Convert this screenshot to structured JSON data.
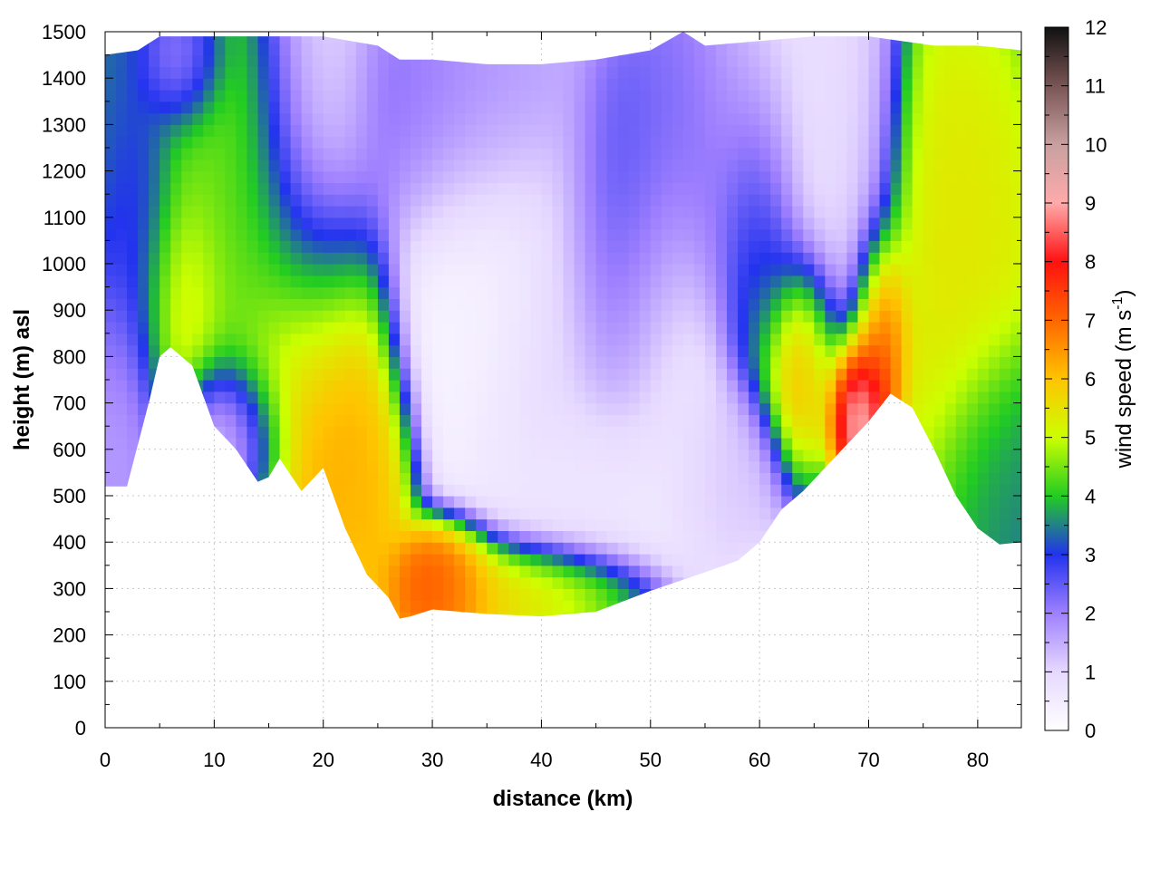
{
  "chart_data": {
    "type": "heatmap",
    "title": "",
    "xlabel": "distance (km)",
    "ylabel": "height (m) asl",
    "xlim": [
      0,
      84
    ],
    "ylim": [
      0,
      1500
    ],
    "x_ticks": [
      0,
      10,
      20,
      30,
      40,
      50,
      60,
      70,
      80
    ],
    "y_ticks": [
      0,
      100,
      200,
      300,
      400,
      500,
      600,
      700,
      800,
      900,
      1000,
      1100,
      1200,
      1300,
      1400,
      1500
    ],
    "grid": true,
    "colorbar": {
      "label_main": "wind speed (m s",
      "label_sup": "-1",
      "label_end": ")",
      "range": [
        0,
        12
      ],
      "ticks": [
        0,
        1,
        2,
        3,
        4,
        5,
        6,
        7,
        8,
        9,
        10,
        11,
        12
      ],
      "colors": [
        "#ffffff",
        "#e6d9ff",
        "#9f80ff",
        "#2233ee",
        "#22cc22",
        "#ccff00",
        "#ffc400",
        "#ff6600",
        "#ff1111",
        "#ffaaaa",
        "#c8a0a0",
        "#7a5555",
        "#111111"
      ]
    },
    "terrain_profile": [
      [
        0,
        520
      ],
      [
        2,
        520
      ],
      [
        4,
        700
      ],
      [
        5,
        800
      ],
      [
        6,
        820
      ],
      [
        8,
        780
      ],
      [
        10,
        650
      ],
      [
        12,
        600
      ],
      [
        14,
        530
      ],
      [
        15,
        540
      ],
      [
        16,
        580
      ],
      [
        18,
        510
      ],
      [
        20,
        560
      ],
      [
        22,
        430
      ],
      [
        24,
        330
      ],
      [
        26,
        280
      ],
      [
        27,
        235
      ],
      [
        28,
        240
      ],
      [
        30,
        255
      ],
      [
        35,
        245
      ],
      [
        40,
        240
      ],
      [
        45,
        250
      ],
      [
        50,
        295
      ],
      [
        55,
        335
      ],
      [
        58,
        360
      ],
      [
        60,
        400
      ],
      [
        62,
        470
      ],
      [
        64,
        510
      ],
      [
        66,
        560
      ],
      [
        68,
        610
      ],
      [
        70,
        660
      ],
      [
        72,
        720
      ],
      [
        74,
        690
      ],
      [
        76,
        600
      ],
      [
        78,
        500
      ],
      [
        80,
        430
      ],
      [
        82,
        395
      ],
      [
        84,
        400
      ]
    ],
    "top_profile": [
      [
        0,
        1450
      ],
      [
        3,
        1460
      ],
      [
        5,
        1490
      ],
      [
        7,
        1490
      ],
      [
        10,
        1490
      ],
      [
        15,
        1490
      ],
      [
        20,
        1490
      ],
      [
        25,
        1470
      ],
      [
        27,
        1440
      ],
      [
        30,
        1440
      ],
      [
        35,
        1430
      ],
      [
        40,
        1430
      ],
      [
        45,
        1440
      ],
      [
        50,
        1460
      ],
      [
        53,
        1500
      ],
      [
        55,
        1470
      ],
      [
        60,
        1480
      ],
      [
        65,
        1490
      ],
      [
        70,
        1490
      ],
      [
        73,
        1480
      ],
      [
        76,
        1470
      ],
      [
        80,
        1470
      ],
      [
        84,
        1460
      ]
    ],
    "wind_blobs": [
      {
        "x": 0,
        "y": 1100,
        "sx": 3,
        "sy": 350,
        "v": 3.5
      },
      {
        "x": 0.5,
        "y": 720,
        "sx": 2.2,
        "sy": 180,
        "v": 1.0
      },
      {
        "x": 3,
        "y": 1100,
        "sx": 2,
        "sy": 180,
        "v": 2.5
      },
      {
        "x": 7,
        "y": 1430,
        "sx": 2,
        "sy": 80,
        "v": 1.3
      },
      {
        "x": 7,
        "y": 930,
        "sx": 2.2,
        "sy": 130,
        "v": 5.7
      },
      {
        "x": 9,
        "y": 1180,
        "sx": 3.5,
        "sy": 240,
        "v": 4.5
      },
      {
        "x": 11.5,
        "y": 640,
        "sx": 2.5,
        "sy": 90,
        "v": 0.7
      },
      {
        "x": 14,
        "y": 1000,
        "sx": 3,
        "sy": 250,
        "v": 4.3
      },
      {
        "x": 19,
        "y": 1180,
        "sx": 3,
        "sy": 240,
        "v": 1.0
      },
      {
        "x": 19,
        "y": 800,
        "sx": 3.5,
        "sy": 200,
        "v": 6.8
      },
      {
        "x": 23,
        "y": 520,
        "sx": 2.5,
        "sy": 150,
        "v": 6.2
      },
      {
        "x": 31,
        "y": 310,
        "sx": 2.6,
        "sy": 70,
        "v": 7.6
      },
      {
        "x": 38,
        "y": 290,
        "sx": 5,
        "sy": 60,
        "v": 6.0
      },
      {
        "x": 34,
        "y": 1000,
        "sx": 4,
        "sy": 250,
        "v": 0.2
      },
      {
        "x": 32,
        "y": 1300,
        "sx": 5,
        "sy": 150,
        "v": 2.4
      },
      {
        "x": 42,
        "y": 800,
        "sx": 5,
        "sy": 260,
        "v": 1.0
      },
      {
        "x": 45,
        "y": 550,
        "sx": 5,
        "sy": 90,
        "v": 0.5
      },
      {
        "x": 48,
        "y": 1000,
        "sx": 3,
        "sy": 200,
        "v": 3.2
      },
      {
        "x": 51,
        "y": 850,
        "sx": 3,
        "sy": 200,
        "v": 0.3
      },
      {
        "x": 55,
        "y": 1200,
        "sx": 4,
        "sy": 200,
        "v": 2.4
      },
      {
        "x": 56,
        "y": 580,
        "sx": 3,
        "sy": 100,
        "v": 1.2
      },
      {
        "x": 62,
        "y": 1300,
        "sx": 4,
        "sy": 200,
        "v": 0.8
      },
      {
        "x": 60,
        "y": 1050,
        "sx": 2,
        "sy": 180,
        "v": 3.8
      },
      {
        "x": 64,
        "y": 800,
        "sx": 2,
        "sy": 120,
        "v": 6.5
      },
      {
        "x": 69,
        "y": 700,
        "sx": 1.5,
        "sy": 90,
        "v": 11.0
      },
      {
        "x": 71,
        "y": 850,
        "sx": 1.4,
        "sy": 120,
        "v": 8.0
      },
      {
        "x": 68,
        "y": 1200,
        "sx": 2.5,
        "sy": 300,
        "v": 1.0
      },
      {
        "x": 78,
        "y": 1000,
        "sx": 4,
        "sy": 300,
        "v": 5.5
      },
      {
        "x": 82,
        "y": 550,
        "sx": 3,
        "sy": 150,
        "v": 3.5
      }
    ]
  }
}
